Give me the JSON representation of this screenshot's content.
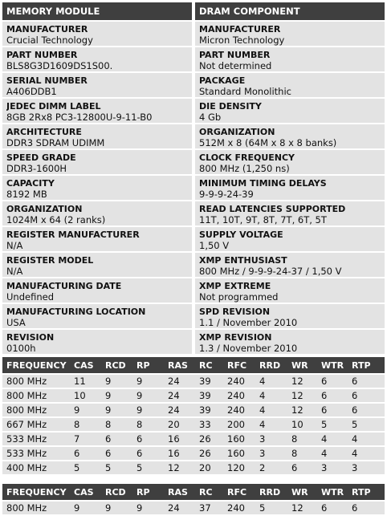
{
  "module": {
    "header": "MEMORY MODULE",
    "rows": [
      {
        "label": "MANUFACTURER",
        "value": "Crucial Technology"
      },
      {
        "label": "PART NUMBER",
        "value": "BLS8G3D1609DS1S00."
      },
      {
        "label": "SERIAL NUMBER",
        "value": "A406DDB1"
      },
      {
        "label": "JEDEC DIMM LABEL",
        "value": "8GB 2Rx8 PC3-12800U-9-11-B0"
      },
      {
        "label": "ARCHITECTURE",
        "value": "DDR3 SDRAM UDIMM"
      },
      {
        "label": "SPEED GRADE",
        "value": "DDR3-1600H"
      },
      {
        "label": "CAPACITY",
        "value": "8192 MB"
      },
      {
        "label": "ORGANIZATION",
        "value": "1024M x 64 (2 ranks)"
      },
      {
        "label": "REGISTER MANUFACTURER",
        "value": "N/A"
      },
      {
        "label": "REGISTER MODEL",
        "value": "N/A"
      },
      {
        "label": "MANUFACTURING DATE",
        "value": "Undefined"
      },
      {
        "label": "MANUFACTURING LOCATION",
        "value": "USA"
      },
      {
        "label": "REVISION",
        "value": "0100h"
      }
    ]
  },
  "component": {
    "header": "DRAM COMPONENT",
    "rows": [
      {
        "label": "MANUFACTURER",
        "value": "Micron Technology"
      },
      {
        "label": "PART NUMBER",
        "value": "Not determined"
      },
      {
        "label": "PACKAGE",
        "value": "Standard Monolithic"
      },
      {
        "label": "DIE DENSITY",
        "value": "4 Gb"
      },
      {
        "label": "ORGANIZATION",
        "value": "512M x 8 (64M x 8 x 8 banks)"
      },
      {
        "label": "CLOCK FREQUENCY",
        "value": "800 MHz (1,250 ns)"
      },
      {
        "label": "MINIMUM TIMING DELAYS",
        "value": "9-9-9-24-39"
      },
      {
        "label": "READ LATENCIES SUPPORTED",
        "value": "11T, 10T, 9T, 8T, 7T, 6T, 5T"
      },
      {
        "label": "SUPPLY VOLTAGE",
        "value": "1,50 V"
      },
      {
        "label": "XMP ENTHUSIAST",
        "value": "800 MHz / 9-9-9-24-37 / 1,50 V"
      },
      {
        "label": "XMP EXTREME",
        "value": "Not programmed"
      },
      {
        "label": "SPD REVISION",
        "value": "1.1 / November 2010"
      },
      {
        "label": "XMP REVISION",
        "value": "1.3 / November 2010"
      }
    ]
  },
  "timing_headers": [
    "FREQUENCY",
    "CAS",
    "RCD",
    "RP",
    "RAS",
    "RC",
    "RFC",
    "RRD",
    "WR",
    "WTR",
    "RTP"
  ],
  "jedec_rows": [
    [
      "800 MHz",
      "11",
      "9",
      "9",
      "24",
      "39",
      "240",
      "4",
      "12",
      "6",
      "6"
    ],
    [
      "800 MHz",
      "10",
      "9",
      "9",
      "24",
      "39",
      "240",
      "4",
      "12",
      "6",
      "6"
    ],
    [
      "800 MHz",
      "9",
      "9",
      "9",
      "24",
      "39",
      "240",
      "4",
      "12",
      "6",
      "6"
    ],
    [
      "667 MHz",
      "8",
      "8",
      "8",
      "20",
      "33",
      "200",
      "4",
      "10",
      "5",
      "5"
    ],
    [
      "533 MHz",
      "7",
      "6",
      "6",
      "16",
      "26",
      "160",
      "3",
      "8",
      "4",
      "4"
    ],
    [
      "533 MHz",
      "6",
      "6",
      "6",
      "16",
      "26",
      "160",
      "3",
      "8",
      "4",
      "4"
    ],
    [
      "400 MHz",
      "5",
      "5",
      "5",
      "12",
      "20",
      "120",
      "2",
      "6",
      "3",
      "3"
    ]
  ],
  "xmp_rows": [
    [
      "800 MHz",
      "9",
      "9",
      "9",
      "24",
      "37",
      "240",
      "5",
      "12",
      "6",
      "6"
    ]
  ]
}
